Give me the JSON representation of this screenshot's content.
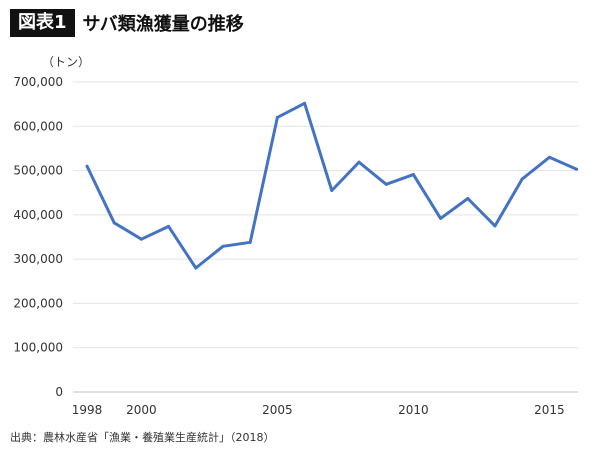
{
  "figure_label": "図表1",
  "title": "サバ類漁獲量の推移",
  "source": "出典：農林水産省「漁業・養殖業生産統計」（2018）",
  "chart_data": {
    "type": "line",
    "unit_label": "（トン）",
    "x": [
      1998,
      1999,
      2000,
      2001,
      2002,
      2003,
      2004,
      2005,
      2006,
      2007,
      2008,
      2009,
      2010,
      2011,
      2012,
      2013,
      2014,
      2015,
      2016
    ],
    "series": [
      {
        "values": [
          510000,
          382000,
          345000,
          374000,
          280000,
          329000,
          338000,
          620000,
          652000,
          455000,
          519000,
          469000,
          491000,
          392000,
          437000,
          375000,
          481000,
          530000,
          503000
        ]
      }
    ],
    "x_ticks": [
      "1998",
      "2000",
      "2005",
      "2010",
      "2015"
    ],
    "y_ticks": [
      "0",
      "100,000",
      "200,000",
      "300,000",
      "400,000",
      "500,000",
      "600,000",
      "700,000"
    ],
    "ylim": [
      0,
      700000
    ],
    "grid": true,
    "line_color": "#4472C4"
  }
}
